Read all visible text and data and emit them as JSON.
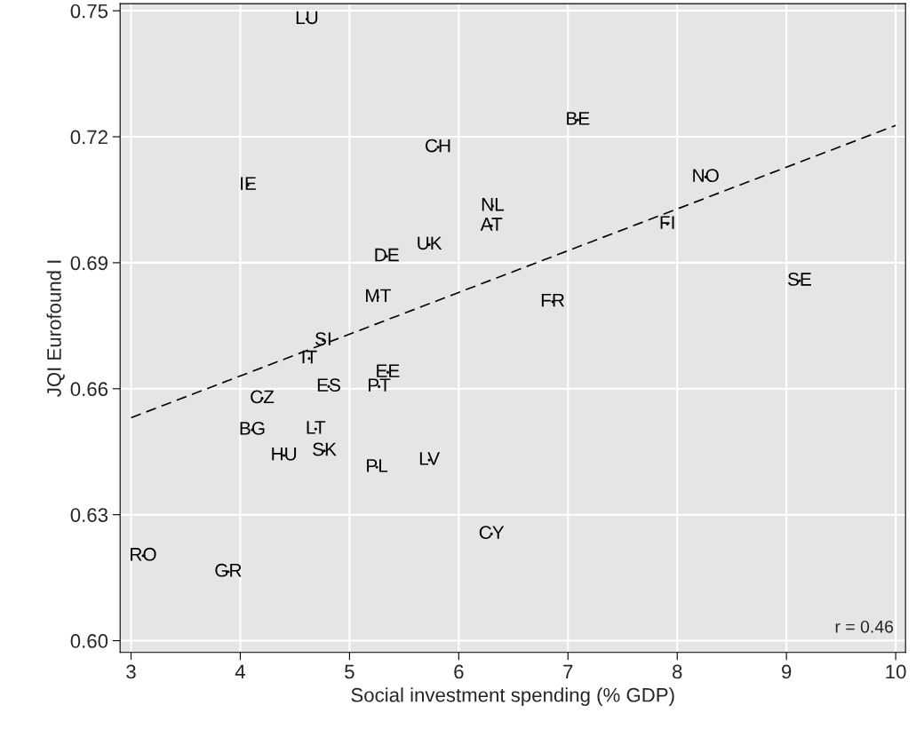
{
  "chart_data": {
    "type": "scatter",
    "xlabel": "Social investment spending (% GDP)",
    "ylabel": "JQI Eurofound I",
    "xlim": [
      2.9,
      10.09
    ],
    "ylim": [
      0.5972,
      0.7517
    ],
    "xticks": [
      3,
      4,
      5,
      6,
      7,
      8,
      9,
      10
    ],
    "yticks": [
      {
        "value": 0.6,
        "label": "0.60"
      },
      {
        "value": 0.63,
        "label": "0.63"
      },
      {
        "value": 0.66,
        "label": "0.66"
      },
      {
        "value": 0.69,
        "label": "0.69"
      },
      {
        "value": 0.72,
        "label": "0.72"
      },
      {
        "value": 0.75,
        "label": "0.75"
      }
    ],
    "grid": true,
    "marker": "none",
    "series": [
      {
        "color": "#000000",
        "x": [
          4.61,
          7.09,
          5.81,
          4.07,
          8.26,
          6.31,
          6.3,
          7.91,
          5.73,
          5.34,
          9.12,
          5.26,
          6.86,
          4.76,
          4.63,
          5.35,
          4.81,
          5.27,
          4.2,
          4.11,
          4.69,
          4.4,
          4.77,
          5.73,
          5.25,
          6.3,
          3.11,
          3.89
        ],
        "values": [
          0.748,
          0.724,
          0.7175,
          0.7085,
          0.7104,
          0.7035,
          0.6988,
          0.6992,
          0.6943,
          0.6915,
          0.6857,
          0.6818,
          0.6807,
          0.6715,
          0.6672,
          0.6639,
          0.6605,
          0.6605,
          0.6577,
          0.6502,
          0.6504,
          0.6441,
          0.6452,
          0.643,
          0.6413,
          0.6254,
          0.6202,
          0.6164
        ],
        "value_labels": [
          "LU",
          "BE",
          "CH",
          "IE",
          "NO",
          "NL",
          "AT",
          "FI",
          "UK",
          "DE",
          "SE",
          "MT",
          "FR",
          "SI",
          "IT",
          "EE",
          "ES",
          "PT",
          "CZ",
          "BG",
          "LT",
          "HU",
          "SK",
          "LV",
          "PL",
          "CY",
          "RO",
          "GR"
        ]
      },
      {
        "type": "line",
        "color": "#000000",
        "line_style": "dashed",
        "x": [
          3,
          10
        ],
        "values": [
          0.6531,
          0.7227
        ]
      }
    ],
    "annotations": [
      {
        "text": "r = 0.46"
      }
    ]
  }
}
